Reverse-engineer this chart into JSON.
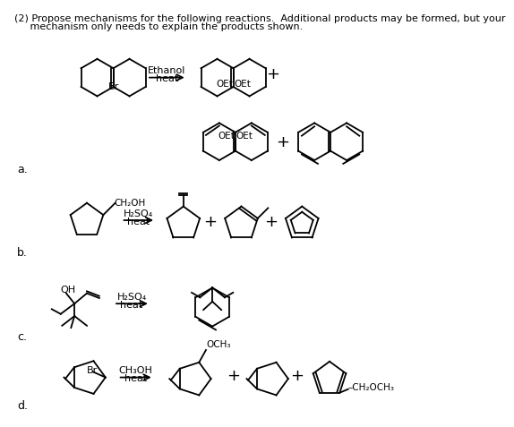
{
  "bg_color": "#ffffff",
  "line_color": "#000000",
  "lw": 1.3,
  "header1": "(2) Propose mechanisms for the following reactions.  Additional products may be formed, but your",
  "header2": "     mechanism only needs to explain the products shown.",
  "label_a": "a.",
  "label_b": "b.",
  "label_c": "c.",
  "label_d": "d.",
  "rxn_a_reagent1": "Ethanol",
  "rxn_a_reagent2": "heat",
  "rxn_b_reagent1": "H₂SO₄",
  "rxn_b_reagent2": "heat",
  "rxn_c_reagent1": "H₂SO₄",
  "rxn_c_reagent2": "heat",
  "rxn_d_reagent1": "CH₃OH",
  "rxn_d_reagent2": "heat"
}
